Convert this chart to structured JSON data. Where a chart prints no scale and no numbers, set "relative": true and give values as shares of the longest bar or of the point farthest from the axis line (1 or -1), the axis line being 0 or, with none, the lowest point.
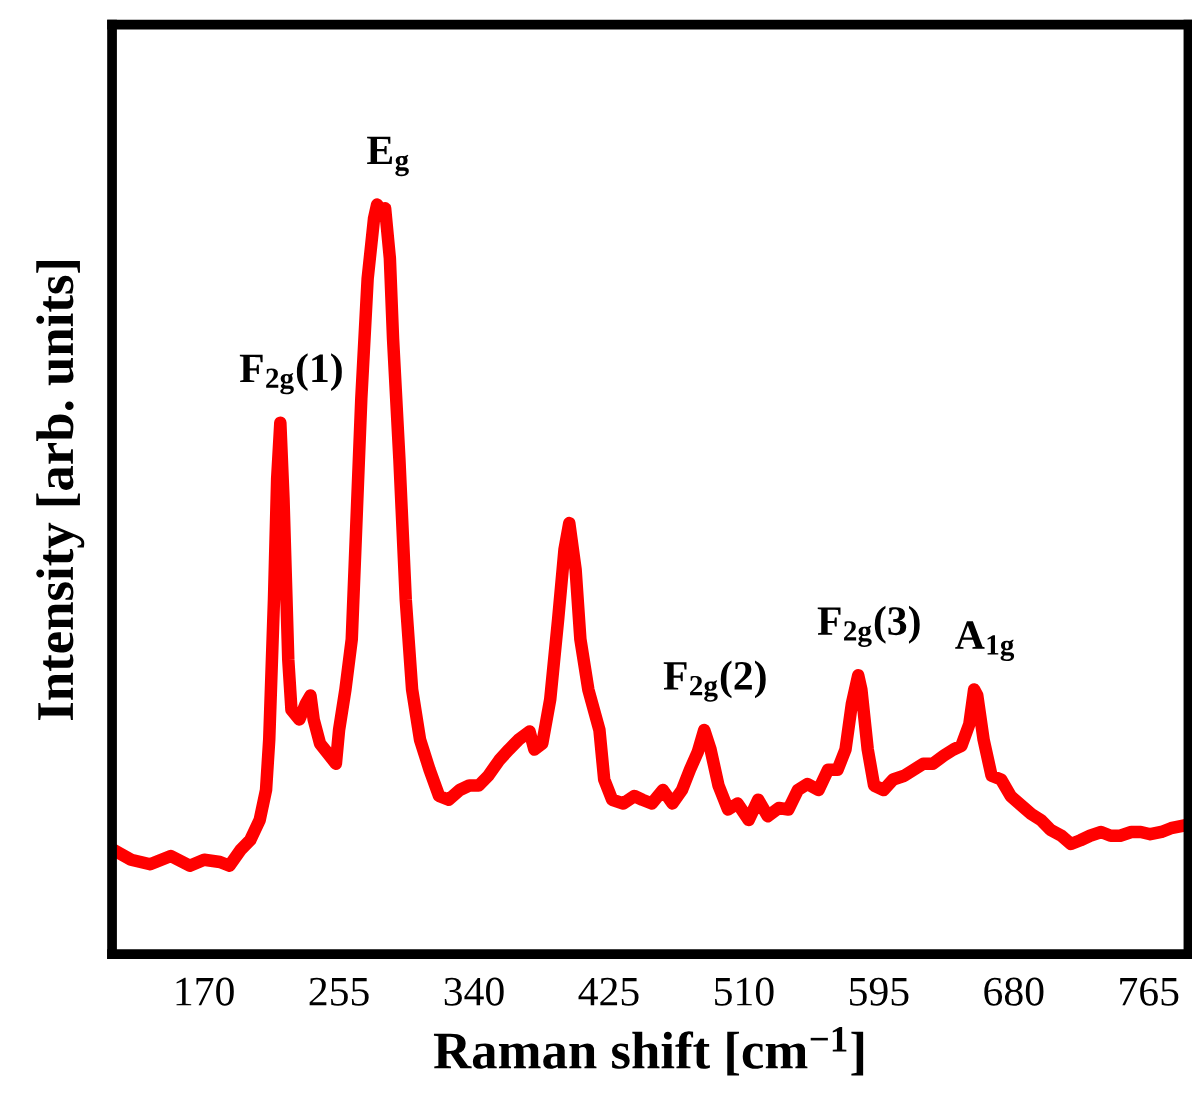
{
  "chart_data": {
    "type": "line",
    "relative": true,
    "xlabel": "Raman shift [cm$^{−1}$]",
    "ylabel": "Intensity [arb. units]",
    "xlim": [
      112,
      790
    ],
    "xticks": [
      170,
      255,
      340,
      425,
      510,
      595,
      680,
      765
    ],
    "tick_labels": "x",
    "grid": false,
    "legend": false,
    "marker": "none",
    "line_style": "solid",
    "annotations": [
      {
        "text": "F$_{2g}$(1)",
        "x": 218,
        "y": 0.709
      },
      {
        "text": "E$_{g}$",
        "x": 279,
        "y": 1
      },
      {
        "text": "F$_{2g}$(2)",
        "x": 485,
        "y": 0.299
      },
      {
        "text": "F$_{2g}$(3)",
        "x": 582,
        "y": 0.372
      },
      {
        "text": "A$_{1g}$",
        "x": 655,
        "y": 0.353
      }
    ],
    "series": [
      {
        "color": "#ff0000",
        "x": [
          113,
          124,
          136,
          149,
          161,
          170,
          180,
          186,
          193,
          199,
          205,
          209,
          211,
          214,
          216,
          218,
          220,
          223,
          225,
          230,
          234,
          237,
          239,
          243,
          249,
          253,
          255,
          259,
          263,
          265,
          269,
          273,
          277,
          279,
          282,
          284,
          287,
          289,
          293,
          297,
          301,
          306,
          312,
          318,
          324,
          331,
          337,
          343,
          349,
          356,
          362,
          368,
          375,
          378,
          383,
          388,
          393,
          397,
          400,
          404,
          407,
          412,
          419,
          422,
          427,
          434,
          441,
          446,
          452,
          459,
          465,
          471,
          476,
          481,
          485,
          489,
          494,
          500,
          506,
          513,
          519,
          525,
          532,
          538,
          544,
          550,
          557,
          563,
          569,
          574,
          578,
          582,
          584,
          588,
          592,
          598,
          604,
          611,
          617,
          623,
          629,
          636,
          642,
          647,
          652,
          655,
          657,
          661,
          666,
          672,
          678,
          685,
          691,
          697,
          703,
          710,
          716,
          722,
          728,
          735,
          741,
          747,
          754,
          760,
          766,
          773,
          779,
          786
        ],
        "values": [
          0.139,
          0.126,
          0.12,
          0.131,
          0.118,
          0.126,
          0.123,
          0.118,
          0.139,
          0.152,
          0.179,
          0.219,
          0.286,
          0.473,
          0.634,
          0.709,
          0.607,
          0.393,
          0.326,
          0.313,
          0.334,
          0.345,
          0.313,
          0.281,
          0.265,
          0.254,
          0.299,
          0.353,
          0.42,
          0.527,
          0.741,
          0.901,
          0.981,
          1,
          0.987,
          0.995,
          0.928,
          0.821,
          0.66,
          0.473,
          0.353,
          0.286,
          0.246,
          0.211,
          0.206,
          0.219,
          0.225,
          0.225,
          0.238,
          0.259,
          0.273,
          0.286,
          0.297,
          0.273,
          0.281,
          0.34,
          0.447,
          0.54,
          0.575,
          0.513,
          0.42,
          0.353,
          0.299,
          0.233,
          0.206,
          0.201,
          0.211,
          0.206,
          0.201,
          0.219,
          0.201,
          0.219,
          0.246,
          0.27,
          0.299,
          0.273,
          0.225,
          0.193,
          0.201,
          0.179,
          0.206,
          0.184,
          0.195,
          0.193,
          0.219,
          0.227,
          0.219,
          0.246,
          0.246,
          0.273,
          0.334,
          0.372,
          0.353,
          0.273,
          0.225,
          0.219,
          0.233,
          0.238,
          0.246,
          0.254,
          0.254,
          0.265,
          0.273,
          0.278,
          0.307,
          0.353,
          0.345,
          0.286,
          0.238,
          0.233,
          0.211,
          0.198,
          0.187,
          0.179,
          0.166,
          0.158,
          0.147,
          0.152,
          0.158,
          0.163,
          0.158,
          0.158,
          0.163,
          0.163,
          0.16,
          0.163,
          0.168,
          0.171
        ]
      }
    ]
  }
}
